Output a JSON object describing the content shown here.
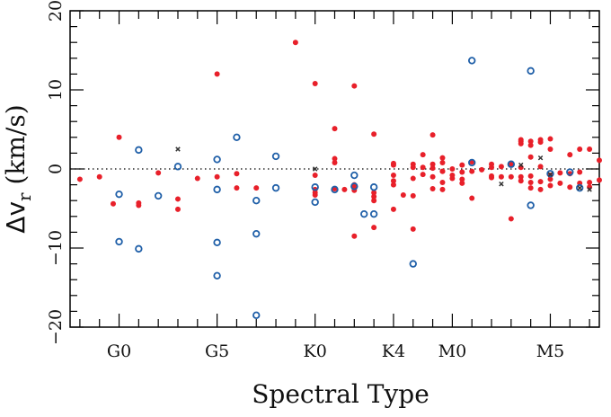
{
  "chart_data": {
    "type": "scatter",
    "xlabel": "Spectral Type",
    "ylabel_main": "Δv",
    "ylabel_sub": "r",
    "ylabel_unit": " (km/s)",
    "ylim": [
      -20,
      20
    ],
    "xlim": [
      -2.5,
      24.5
    ],
    "y_ticks": [
      -20,
      -10,
      0,
      10,
      20
    ],
    "y_tick_labels": [
      "−20",
      "−10",
      "0",
      "10",
      "20"
    ],
    "x_ticks": [
      0,
      5,
      10,
      14,
      17,
      22
    ],
    "x_tick_labels": [
      "G0",
      "G5",
      "K0",
      "K4",
      "M0",
      "M5"
    ],
    "grid": false,
    "zero_line": "dotted",
    "colors": {
      "filled": "#e8202a",
      "open": "#1f5fa8",
      "cross": "#333333"
    },
    "series": [
      {
        "marker": "filled-circle",
        "points": [
          [
            -2.0,
            -1.3
          ],
          [
            -1.0,
            -1.0
          ],
          [
            0.0,
            4.0
          ],
          [
            -0.3,
            -4.4
          ],
          [
            1.0,
            -4.6
          ],
          [
            1.0,
            -4.3
          ],
          [
            2.0,
            -0.5
          ],
          [
            3.0,
            -3.8
          ],
          [
            3.0,
            -5.1
          ],
          [
            4.0,
            -1.2
          ],
          [
            5.0,
            12.0
          ],
          [
            5.0,
            -1.0
          ],
          [
            6.0,
            -0.6
          ],
          [
            6.0,
            -2.4
          ],
          [
            7.0,
            -2.4
          ],
          [
            9.0,
            16.0
          ],
          [
            10.0,
            10.8
          ],
          [
            10.0,
            -0.8
          ],
          [
            10.0,
            -2.6
          ],
          [
            10.0,
            -3.0
          ],
          [
            10.0,
            -3.3
          ],
          [
            11.0,
            5.1
          ],
          [
            11.0,
            1.3
          ],
          [
            11.0,
            0.8
          ],
          [
            11.0,
            -2.5
          ],
          [
            11.5,
            -2.6
          ],
          [
            12.0,
            10.5
          ],
          [
            12.0,
            -8.5
          ],
          [
            12.0,
            -2.0
          ],
          [
            12.0,
            -2.4
          ],
          [
            12.0,
            -2.7
          ],
          [
            13.0,
            4.4
          ],
          [
            13.0,
            -3.0
          ],
          [
            13.0,
            -3.5
          ],
          [
            13.0,
            -4.0
          ],
          [
            13.0,
            -7.4
          ],
          [
            14.0,
            0.7
          ],
          [
            14.0,
            0.5
          ],
          [
            14.0,
            -0.8
          ],
          [
            14.0,
            -1.5
          ],
          [
            14.0,
            -2.0
          ],
          [
            14.0,
            -5.1
          ],
          [
            14.5,
            -3.3
          ],
          [
            15.0,
            0.6
          ],
          [
            15.0,
            0.2
          ],
          [
            15.0,
            -1.2
          ],
          [
            15.0,
            -3.4
          ],
          [
            15.0,
            -7.6
          ],
          [
            15.5,
            1.8
          ],
          [
            15.5,
            0.2
          ],
          [
            15.5,
            -0.7
          ],
          [
            16.0,
            4.3
          ],
          [
            16.0,
            0.6
          ],
          [
            16.0,
            0.1
          ],
          [
            16.0,
            -1.0
          ],
          [
            16.0,
            -2.5
          ],
          [
            16.5,
            1.4
          ],
          [
            16.5,
            0.8
          ],
          [
            16.5,
            -0.3
          ],
          [
            16.5,
            -1.7
          ],
          [
            16.5,
            -2.6
          ],
          [
            17.0,
            0.0
          ],
          [
            17.0,
            -0.8
          ],
          [
            17.0,
            -1.2
          ],
          [
            17.5,
            0.5
          ],
          [
            17.5,
            -0.4
          ],
          [
            17.5,
            -1.3
          ],
          [
            17.5,
            -1.8
          ],
          [
            18.0,
            0.9
          ],
          [
            18.0,
            -0.3
          ],
          [
            18.0,
            -3.7
          ],
          [
            18.5,
            -0.1
          ],
          [
            19.0,
            0.2
          ],
          [
            19.0,
            -0.9
          ],
          [
            19.0,
            0.6
          ],
          [
            19.0,
            -1.1
          ],
          [
            19.5,
            0.3
          ],
          [
            19.5,
            -1.0
          ],
          [
            20.0,
            0.6
          ],
          [
            20.0,
            -6.3
          ],
          [
            20.5,
            3.5
          ],
          [
            20.5,
            3.2
          ],
          [
            20.5,
            3.7
          ],
          [
            20.5,
            0.2
          ],
          [
            20.5,
            -1.0
          ],
          [
            20.5,
            -1.5
          ],
          [
            21.0,
            3.5
          ],
          [
            21.0,
            3.0
          ],
          [
            21.0,
            1.5
          ],
          [
            21.0,
            -0.9
          ],
          [
            21.0,
            -2.4
          ],
          [
            21.5,
            3.7
          ],
          [
            21.5,
            3.4
          ],
          [
            21.5,
            0.3
          ],
          [
            21.5,
            -1.6
          ],
          [
            21.5,
            -2.6
          ],
          [
            22.0,
            3.8
          ],
          [
            22.0,
            2.5
          ],
          [
            22.0,
            -1.3
          ],
          [
            22.0,
            -2.1
          ],
          [
            22.0,
            -0.8
          ],
          [
            22.5,
            -0.5
          ],
          [
            22.5,
            -1.8
          ],
          [
            23.0,
            1.8
          ],
          [
            23.0,
            -0.6
          ],
          [
            23.0,
            -2.3
          ],
          [
            23.5,
            2.5
          ],
          [
            23.5,
            -0.4
          ],
          [
            23.5,
            -1.8
          ],
          [
            24.0,
            2.5
          ],
          [
            24.0,
            -1.7
          ],
          [
            24.0,
            -2.3
          ],
          [
            24.5,
            1.1
          ],
          [
            24.5,
            -1.4
          ],
          [
            21.0,
            -1.7
          ],
          [
            20.0,
            -1.0
          ],
          [
            16.5,
            -0.3
          ]
        ]
      },
      {
        "marker": "open-circle",
        "points": [
          [
            0.0,
            -3.2
          ],
          [
            0.0,
            -9.2
          ],
          [
            1.0,
            2.4
          ],
          [
            1.0,
            -10.1
          ],
          [
            2.0,
            -3.4
          ],
          [
            3.0,
            0.3
          ],
          [
            5.0,
            1.2
          ],
          [
            5.0,
            -2.6
          ],
          [
            5.0,
            -9.3
          ],
          [
            5.0,
            -13.5
          ],
          [
            6.0,
            4.0
          ],
          [
            7.0,
            -4.0
          ],
          [
            7.0,
            -8.2
          ],
          [
            7.0,
            -18.5
          ],
          [
            8.0,
            1.6
          ],
          [
            8.0,
            -2.4
          ],
          [
            10.0,
            -2.3
          ],
          [
            10.0,
            -4.2
          ],
          [
            11.0,
            -2.6
          ],
          [
            12.0,
            -0.8
          ],
          [
            12.0,
            -2.2
          ],
          [
            12.5,
            -5.7
          ],
          [
            13.0,
            -2.3
          ],
          [
            13.0,
            -5.7
          ],
          [
            15.0,
            -12.0
          ],
          [
            18.0,
            13.7
          ],
          [
            18.0,
            0.8
          ],
          [
            20.0,
            0.6
          ],
          [
            21.0,
            12.4
          ],
          [
            21.0,
            -4.6
          ],
          [
            22.0,
            -0.6
          ],
          [
            23.0,
            -0.4
          ],
          [
            23.5,
            -2.4
          ]
        ]
      },
      {
        "marker": "cross",
        "points": [
          [
            3.0,
            2.5
          ],
          [
            10.0,
            0.0
          ],
          [
            20.5,
            0.5
          ],
          [
            19.5,
            -1.9
          ],
          [
            21.5,
            1.4
          ],
          [
            22.0,
            -0.7
          ],
          [
            23.5,
            -2.4
          ],
          [
            24.0,
            -2.6
          ]
        ]
      }
    ]
  }
}
